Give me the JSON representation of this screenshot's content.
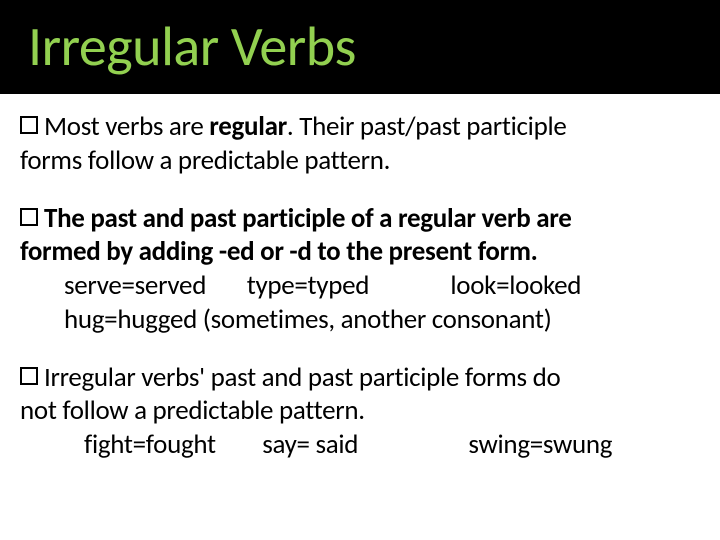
{
  "title": "Irregular Verbs",
  "block1": {
    "lead": "Most verbs are ",
    "boldWord": "regular",
    "rest1": ". Their past/past participle",
    "line2": "forms follow a predictable pattern."
  },
  "block2": {
    "bold1": "The past and past participle of a regular verb are",
    "bold2": "formed by adding -ed or -d to the present form.",
    "ex1": "serve=served       type=typed              look=looked",
    "ex2": "hug=hugged (sometimes, another consonant)"
  },
  "block3": {
    "line1": "Irregular verbs' past and past participle forms do",
    "line2": "not follow a predictable pattern.",
    "ex1": "fight=fought        say= said                   swing=swung"
  }
}
